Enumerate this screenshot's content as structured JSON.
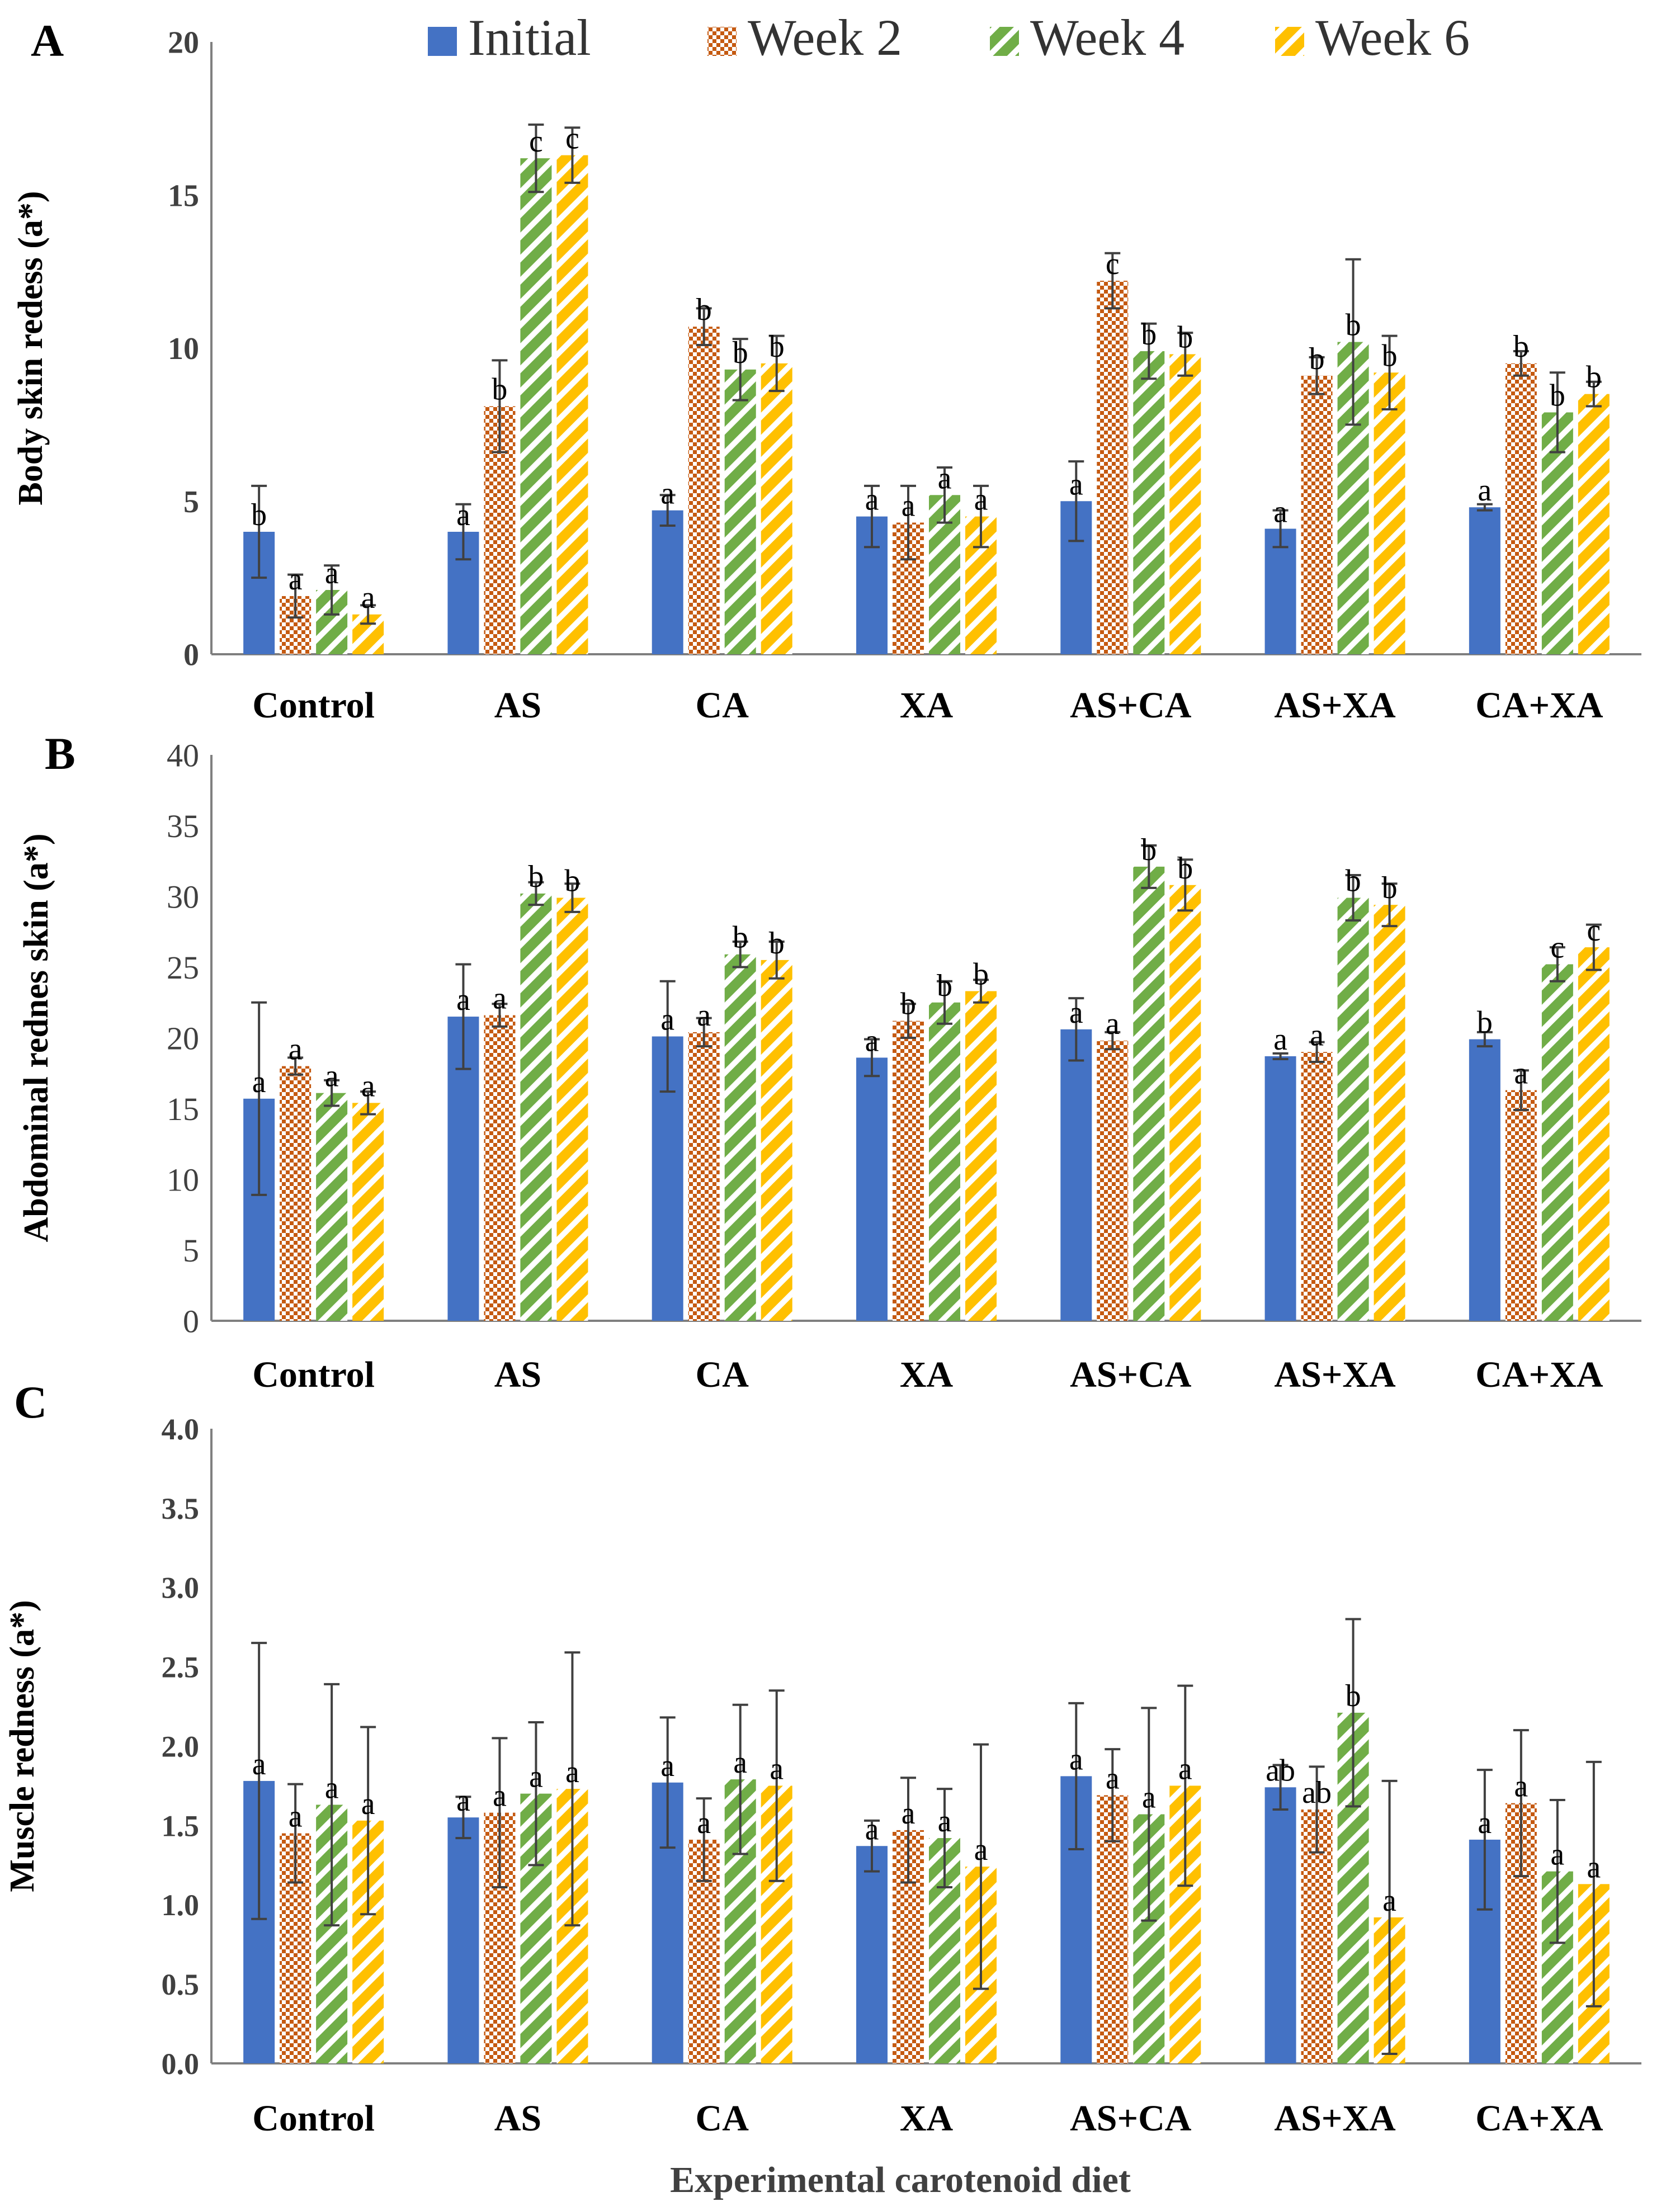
{
  "colors": {
    "initial": "#4472C4",
    "week2": "#C55A11",
    "week4": "#70AD47",
    "week6": "#FFC000",
    "axis": "#7f7f7f",
    "text": "#000000",
    "errorbar": "#404040"
  },
  "legend": {
    "items": [
      {
        "name": "Initial",
        "color_key": "initial",
        "pattern": "solid"
      },
      {
        "name": "Week 2",
        "color_key": "week2",
        "pattern": "checker"
      },
      {
        "name": "Week 4",
        "color_key": "week4",
        "pattern": "diagonal"
      },
      {
        "name": "Week 6",
        "color_key": "week6",
        "pattern": "diagonal"
      }
    ]
  },
  "xlabel": "Experimental carotenoid diet",
  "chart_data": [
    {
      "panel_label": "A",
      "type": "bar",
      "ylabel": "Body skin redess (a*)",
      "ylim": [
        0,
        20
      ],
      "yticks": [
        "0",
        "5",
        "10",
        "15",
        "20"
      ],
      "ytick_values": [
        0,
        5,
        10,
        15,
        20
      ],
      "categories": [
        "Control",
        "AS",
        "CA",
        "XA",
        "AS+CA",
        "AS+XA",
        "CA+XA"
      ],
      "series": [
        {
          "name": "Initial",
          "values": [
            4.0,
            4.0,
            4.7,
            4.5,
            5.0,
            4.1,
            4.8
          ],
          "errors": [
            1.5,
            0.9,
            0.5,
            1.0,
            1.3,
            0.6,
            0.1
          ],
          "letters": [
            "b",
            "a",
            "a",
            "a",
            "a",
            "a",
            "a"
          ]
        },
        {
          "name": "Week 2",
          "values": [
            1.9,
            8.1,
            10.7,
            4.3,
            12.2,
            9.1,
            9.5
          ],
          "errors": [
            0.7,
            1.5,
            0.6,
            1.2,
            0.9,
            0.6,
            0.4
          ],
          "letters": [
            "a",
            "b",
            "b",
            "a",
            "c",
            "b",
            "b"
          ]
        },
        {
          "name": "Week 4",
          "values": [
            2.1,
            16.2,
            9.3,
            5.2,
            9.9,
            10.2,
            7.9
          ],
          "errors": [
            0.8,
            1.1,
            1.0,
            0.9,
            0.9,
            2.7,
            1.3
          ],
          "letters": [
            "a",
            "c",
            "b",
            "a",
            "b",
            "b",
            "b"
          ]
        },
        {
          "name": "Week 6",
          "values": [
            1.3,
            16.3,
            9.5,
            4.5,
            9.8,
            9.2,
            8.5
          ],
          "errors": [
            0.3,
            0.9,
            0.9,
            1.0,
            0.7,
            1.2,
            0.4
          ],
          "letters": [
            "a",
            "c",
            "b",
            "a",
            "b",
            "b",
            "b"
          ]
        }
      ]
    },
    {
      "panel_label": "B",
      "type": "bar",
      "ylabel": "Abdominal rednes skin (a*)",
      "ylim": [
        0,
        40
      ],
      "yticks": [
        "0",
        "5",
        "10",
        "15",
        "20",
        "25",
        "30",
        "35",
        "40"
      ],
      "ytick_values": [
        0,
        5,
        10,
        15,
        20,
        25,
        30,
        35,
        40
      ],
      "categories": [
        "Control",
        "AS",
        "CA",
        "XA",
        "AS+CA",
        "AS+XA",
        "CA+XA"
      ],
      "series": [
        {
          "name": "Initial",
          "values": [
            15.7,
            21.5,
            20.1,
            18.6,
            20.6,
            18.7,
            19.9
          ],
          "errors": [
            6.8,
            3.7,
            3.9,
            1.3,
            2.2,
            0.2,
            0.5
          ],
          "letters": [
            "a",
            "a",
            "a",
            "a",
            "a",
            "a",
            "b"
          ]
        },
        {
          "name": "Week 2",
          "values": [
            18.0,
            21.6,
            20.4,
            21.2,
            19.8,
            19.0,
            16.3
          ],
          "errors": [
            0.6,
            0.8,
            1.0,
            1.2,
            0.6,
            0.7,
            1.4
          ],
          "letters": [
            "a",
            "a",
            "a",
            "b",
            "a",
            "a",
            "a"
          ]
        },
        {
          "name": "Week 4",
          "values": [
            16.1,
            30.2,
            25.9,
            22.5,
            32.1,
            29.9,
            25.2
          ],
          "errors": [
            0.9,
            0.8,
            0.9,
            1.5,
            1.5,
            1.6,
            1.2
          ],
          "letters": [
            "a",
            "b",
            "b",
            "b",
            "b",
            "b",
            "c"
          ]
        },
        {
          "name": "Week 6",
          "values": [
            15.4,
            29.9,
            25.5,
            23.3,
            30.8,
            29.4,
            26.4
          ],
          "errors": [
            0.8,
            1.0,
            1.3,
            0.8,
            1.8,
            1.5,
            1.6
          ],
          "letters": [
            "a",
            "b",
            "b",
            "b",
            "b",
            "b",
            "c"
          ]
        }
      ]
    },
    {
      "panel_label": "C",
      "type": "bar",
      "ylabel": "Muscle redness (a*)",
      "ylim": [
        0,
        4
      ],
      "yticks": [
        "0.0",
        "0.5",
        "1.0",
        "1.5",
        "2.0",
        "2.5",
        "3.0",
        "3.5",
        "4.0"
      ],
      "ytick_values": [
        0,
        0.5,
        1.0,
        1.5,
        2.0,
        2.5,
        3.0,
        3.5,
        4.0
      ],
      "categories": [
        "Control",
        "AS",
        "CA",
        "XA",
        "AS+CA",
        "AS+XA",
        "CA+XA"
      ],
      "series": [
        {
          "name": "Initial",
          "values": [
            1.78,
            1.55,
            1.77,
            1.37,
            1.81,
            1.74,
            1.41
          ],
          "errors": [
            0.87,
            0.13,
            0.41,
            0.16,
            0.46,
            0.14,
            0.44
          ],
          "letters": [
            "a",
            "a",
            "a",
            "a",
            "a",
            "ab",
            "a"
          ]
        },
        {
          "name": "Week 2",
          "values": [
            1.45,
            1.58,
            1.41,
            1.47,
            1.69,
            1.6,
            1.64
          ],
          "errors": [
            0.31,
            0.47,
            0.26,
            0.33,
            0.29,
            0.27,
            0.46
          ],
          "letters": [
            "a",
            "a",
            "a",
            "a",
            "a",
            "ab",
            "a"
          ]
        },
        {
          "name": "Week 4",
          "values": [
            1.63,
            1.7,
            1.79,
            1.42,
            1.57,
            2.21,
            1.21
          ],
          "errors": [
            0.76,
            0.45,
            0.47,
            0.31,
            0.67,
            0.59,
            0.45
          ],
          "letters": [
            "a",
            "a",
            "a",
            "a",
            "a",
            "b",
            "a"
          ]
        },
        {
          "name": "Week 6",
          "values": [
            1.53,
            1.73,
            1.75,
            1.24,
            1.75,
            0.92,
            1.13
          ],
          "errors": [
            0.59,
            0.86,
            0.6,
            0.77,
            0.63,
            0.86,
            0.77
          ],
          "letters": [
            "a",
            "a",
            "a",
            "a",
            "a",
            "a",
            "a"
          ]
        }
      ]
    }
  ]
}
